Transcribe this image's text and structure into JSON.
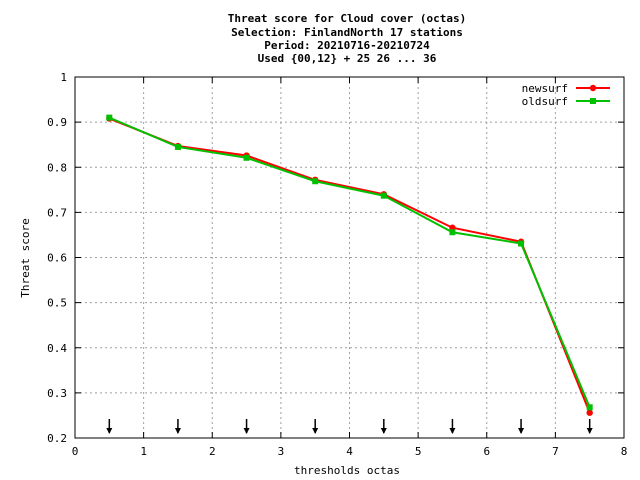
{
  "chart_data": {
    "type": "line",
    "title_lines": [
      "Threat score  for Cloud cover (octas)",
      "Selection: FinlandNorth     17 stations",
      "Period: 20210716-20210724",
      "Used {00,12} + 25 26 ... 36"
    ],
    "xlabel": "thresholds octas",
    "ylabel": "Threat score",
    "xlim": [
      0,
      8
    ],
    "ylim": [
      0.2,
      1.0
    ],
    "xticks": [
      "0",
      "1",
      "2",
      "3",
      "4",
      "5",
      "6",
      "7",
      "8"
    ],
    "yticks": [
      "0.2",
      "0.3",
      "0.4",
      "0.5",
      "0.6",
      "0.7",
      "0.8",
      "0.9",
      "1"
    ],
    "grid": true,
    "legend_position": "top-right",
    "x": [
      0.5,
      1.5,
      2.5,
      3.5,
      4.5,
      5.5,
      6.5,
      7.5
    ],
    "series": [
      {
        "name": "newsurf",
        "color": "#ff0000",
        "marker": "filled-circle",
        "values": [
          0.908,
          0.847,
          0.826,
          0.772,
          0.74,
          0.666,
          0.635,
          0.256
        ]
      },
      {
        "name": "oldsurf",
        "color": "#00c000",
        "marker": "filled-square",
        "values": [
          0.91,
          0.845,
          0.821,
          0.769,
          0.737,
          0.656,
          0.631,
          0.268
        ]
      }
    ],
    "arrow_marker_x": [
      0.5,
      1.5,
      2.5,
      3.5,
      4.5,
      5.5,
      6.5,
      7.5
    ]
  }
}
